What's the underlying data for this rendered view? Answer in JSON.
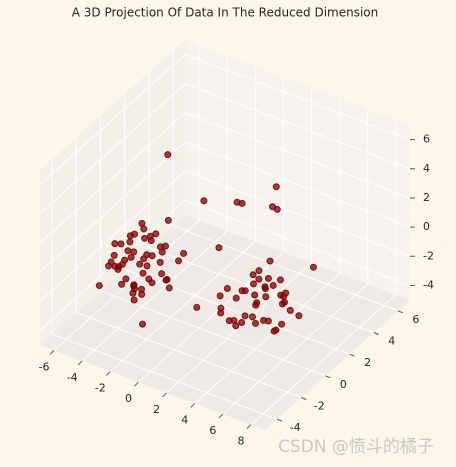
{
  "chart_data": {
    "type": "scatter3d",
    "title": "A 3D Projection Of Data In The Reduced Dimension",
    "watermark": "CSDN @愤斗的橘子",
    "xlim": [
      -7,
      9
    ],
    "ylim": [
      -5,
      7
    ],
    "zlim": [
      -5,
      7
    ],
    "xticks": [
      -6,
      -4,
      -2,
      0,
      2,
      4,
      6,
      8
    ],
    "yticks": [
      -4,
      -2,
      0,
      2,
      4,
      6
    ],
    "zticks": [
      -4,
      -2,
      0,
      2,
      4,
      6
    ],
    "grid": true,
    "series": [
      {
        "color": "#800000",
        "x": [
          -3.1,
          -2.4,
          -1.8,
          -3.6,
          -2.9,
          -2.0,
          -1.2,
          -3.3,
          -2.7,
          -4.0,
          -2.2,
          -1.5,
          -3.0,
          -2.6,
          -1.9,
          -3.8,
          -2.3,
          -1.0,
          -2.8,
          -3.5,
          -2.1,
          -1.6,
          -4.3,
          -2.5,
          -0.8,
          -3.2,
          -2.0,
          -1.4,
          -3.7,
          -2.9,
          -0.5,
          -2.4,
          -3.4,
          -1.7,
          -2.6,
          -4.6,
          -1.1,
          -3.0,
          -2.2,
          0.2,
          -3.9,
          -2.7,
          -1.3,
          -2.0,
          -3.3,
          -0.3,
          -2.5,
          -1.8,
          -4.1,
          -2.8,
          3.8,
          4.5,
          3.0,
          5.2,
          4.1,
          2.6,
          4.8,
          3.5,
          5.6,
          4.0,
          3.2,
          4.6,
          2.8,
          5.0,
          3.7,
          4.3,
          6.0,
          3.4,
          4.9,
          2.4,
          4.2,
          5.4,
          3.1,
          4.7,
          3.9,
          5.8,
          2.9,
          4.4,
          3.6,
          5.1,
          4.0,
          6.3,
          3.3,
          4.6,
          2.2,
          5.3,
          3.8,
          4.1,
          6.6,
          3.0,
          -3.5,
          1.0,
          2.5,
          0.5,
          -0.5,
          1.8,
          3.0,
          -1.0,
          2.0,
          -4.5,
          6.0,
          1.0
        ],
        "y": [
          -2.0,
          -1.5,
          -2.8,
          -1.2,
          -2.5,
          -3.0,
          -1.8,
          -2.2,
          -0.8,
          -2.6,
          -1.0,
          -2.4,
          -3.2,
          -1.6,
          -2.1,
          -1.9,
          -0.5,
          -2.7,
          -1.3,
          -3.4,
          -2.3,
          -0.9,
          -2.0,
          -1.1,
          -1.7,
          -2.9,
          -0.2,
          -3.1,
          -1.4,
          -2.0,
          -2.5,
          -3.6,
          -0.6,
          -1.9,
          -2.3,
          -1.6,
          -0.4,
          -1.0,
          -2.8,
          -1.5,
          -2.4,
          -3.0,
          -1.2,
          -0.7,
          -2.6,
          -2.1,
          -1.8,
          -3.3,
          -0.9,
          -2.2,
          0.2,
          -0.8,
          1.0,
          -0.3,
          0.7,
          -1.2,
          1.5,
          -0.5,
          0.4,
          -1.6,
          0.8,
          0.0,
          -0.9,
          1.2,
          -1.4,
          0.5,
          -0.6,
          1.8,
          -1.0,
          0.3,
          -0.2,
          0.9,
          -1.8,
          1.3,
          -0.7,
          0.1,
          1.6,
          -1.3,
          0.6,
          -0.4,
          2.1,
          -1.1,
          -0.3,
          0.8,
          -0.8,
          1.4,
          -1.9,
          0.2,
          0.6,
          2.4,
          1.5,
          2.0,
          3.5,
          3.0,
          1.0,
          4.0,
          3.0,
          -3.5,
          -2.5,
          -3.0,
          2.5,
          0.5
        ],
        "z": [
          0.2,
          -0.5,
          0.8,
          -0.2,
          1.1,
          -0.8,
          0.4,
          -1.2,
          0.6,
          0.0,
          1.4,
          -0.4,
          0.3,
          -1.0,
          0.9,
          -0.6,
          0.1,
          1.6,
          -0.3,
          0.5,
          -1.4,
          0.7,
          -0.1,
          1.2,
          -0.7,
          0.2,
          1.8,
          -0.9,
          0.6,
          -1.6,
          0.4,
          -0.2,
          1.0,
          -1.1,
          2.2,
          0.3,
          -0.5,
          0.8,
          -1.8,
          1.3,
          -0.4,
          0.9,
          -1.3,
          0.0,
          1.5,
          -0.8,
          2.6,
          -0.3,
          0.5,
          -2.0,
          -1.5,
          -2.0,
          -1.0,
          -2.4,
          -1.2,
          -1.8,
          -2.6,
          -0.8,
          -1.6,
          -2.2,
          -1.4,
          -2.8,
          -0.6,
          -1.9,
          -2.1,
          -1.1,
          -2.5,
          -1.7,
          -0.9,
          -2.3,
          -3.0,
          -1.3,
          -1.5,
          -2.0,
          -0.5,
          -2.7,
          -1.2,
          -1.6,
          -2.4,
          -0.7,
          -1.8,
          -2.1,
          -3.2,
          -1.0,
          -1.4,
          -2.9,
          -1.7,
          -0.3,
          -2.2,
          -1.1,
          4.5,
          2.5,
          3.0,
          1.5,
          2.8,
          1.0,
          2.0,
          -2.5,
          -1.0,
          -1.5,
          -0.5,
          0.5
        ]
      }
    ]
  }
}
